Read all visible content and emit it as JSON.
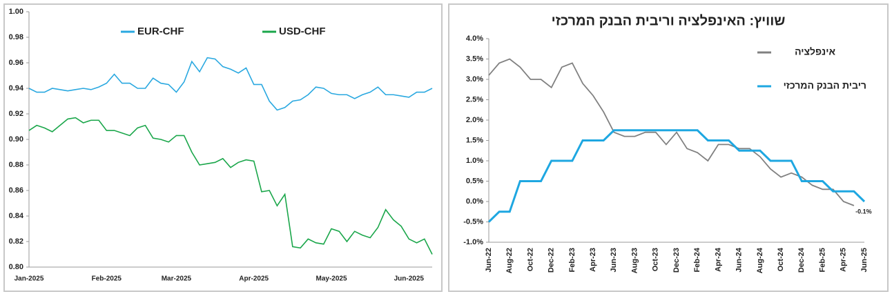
{
  "chart_data": [
    {
      "type": "line",
      "categories": [
        "Jan-2025",
        null,
        null,
        null,
        null,
        null,
        null,
        null,
        null,
        null,
        "Feb-2025",
        null,
        null,
        null,
        null,
        null,
        null,
        null,
        null,
        "Mar-2025",
        null,
        null,
        null,
        null,
        null,
        null,
        null,
        null,
        null,
        "Apr-2025",
        null,
        null,
        null,
        null,
        null,
        null,
        null,
        null,
        null,
        "May-2025",
        null,
        null,
        null,
        null,
        null,
        null,
        null,
        null,
        null,
        "Jun-2025",
        null,
        null,
        null
      ],
      "series": [
        {
          "name": "EUR-CHF",
          "color": "#29a8e0",
          "values": [
            0.94,
            0.937,
            0.937,
            0.94,
            0.939,
            0.938,
            0.939,
            0.94,
            0.939,
            0.941,
            0.944,
            0.951,
            0.944,
            0.944,
            0.94,
            0.94,
            0.948,
            0.944,
            0.943,
            0.937,
            0.945,
            0.961,
            0.953,
            0.964,
            0.963,
            0.957,
            0.955,
            0.952,
            0.956,
            0.943,
            0.943,
            0.93,
            0.923,
            0.925,
            0.93,
            0.931,
            0.935,
            0.941,
            0.94,
            0.936,
            0.935,
            0.935,
            0.932,
            0.935,
            0.937,
            0.941,
            0.935,
            0.935,
            0.934,
            0.933,
            0.937,
            0.937,
            0.94
          ]
        },
        {
          "name": "USD-CHF",
          "color": "#1aa64a",
          "values": [
            0.907,
            0.911,
            0.909,
            0.906,
            0.911,
            0.916,
            0.917,
            0.913,
            0.915,
            0.915,
            0.907,
            0.907,
            0.905,
            0.903,
            0.909,
            0.911,
            0.901,
            0.9,
            0.898,
            0.903,
            0.903,
            0.89,
            0.88,
            0.881,
            0.882,
            0.885,
            0.878,
            0.882,
            0.884,
            0.883,
            0.859,
            0.86,
            0.848,
            0.857,
            0.816,
            0.815,
            0.822,
            0.819,
            0.818,
            0.83,
            0.828,
            0.82,
            0.828,
            0.825,
            0.823,
            0.831,
            0.845,
            0.837,
            0.832,
            0.822,
            0.819,
            0.822,
            0.81
          ]
        }
      ],
      "ylim": [
        0.8,
        1.0
      ],
      "yticks": [
        {
          "value": 0.8,
          "label": "0.80"
        },
        0.82,
        0.84,
        0.86,
        0.88,
        {
          "value": 0.9,
          "label": "0.90"
        },
        0.92,
        0.94,
        0.96,
        0.98,
        {
          "value": 1.0,
          "label": "1.00"
        }
      ],
      "grid": false
    },
    {
      "type": "line",
      "title": "שוויץ: האינפלציה וריבית הבנק המרכזי",
      "categories": [
        "Jun-22",
        null,
        "Aug-22",
        null,
        "Oct-22",
        null,
        "Dec-22",
        null,
        "Feb-23",
        null,
        "Apr-23",
        null,
        "Jun-23",
        null,
        "Aug-23",
        null,
        "Oct-23",
        null,
        "Dec-23",
        null,
        "Feb-24",
        null,
        "Apr-24",
        null,
        "Jun-24",
        null,
        "Aug-24",
        null,
        "Oct-24",
        null,
        "Dec-24",
        null,
        "Feb-25",
        null,
        "Apr-25",
        null,
        "Jun-25"
      ],
      "series": [
        {
          "name": "אינפלציה",
          "color": "#808080",
          "values": [
            3.1,
            3.4,
            3.5,
            3.3,
            3.0,
            3.0,
            2.8,
            3.3,
            3.4,
            2.9,
            2.6,
            2.2,
            1.7,
            1.6,
            1.6,
            1.7,
            1.7,
            1.4,
            1.7,
            1.3,
            1.2,
            1.0,
            1.4,
            1.4,
            1.3,
            1.3,
            1.1,
            0.8,
            0.6,
            0.7,
            0.6,
            0.4,
            0.3,
            0.3,
            0.0,
            -0.1,
            null
          ],
          "value_labels": [
            null,
            null,
            null,
            null,
            null,
            null,
            null,
            null,
            null,
            null,
            null,
            null,
            null,
            null,
            null,
            null,
            null,
            null,
            null,
            null,
            null,
            null,
            null,
            null,
            null,
            null,
            null,
            null,
            null,
            null,
            null,
            null,
            null,
            null,
            null,
            "-0.1%",
            null
          ]
        },
        {
          "name": "ריבית הבנק המרכזי",
          "color": "#1ea7e1",
          "values": [
            -0.5,
            -0.25,
            -0.25,
            0.5,
            0.5,
            0.5,
            1.0,
            1.0,
            1.0,
            1.5,
            1.5,
            1.5,
            1.75,
            1.75,
            1.75,
            1.75,
            1.75,
            1.75,
            1.75,
            1.75,
            1.75,
            1.5,
            1.5,
            1.5,
            1.25,
            1.25,
            1.25,
            1.0,
            1.0,
            1.0,
            0.5,
            0.5,
            0.5,
            0.25,
            0.25,
            0.25,
            0.0
          ]
        }
      ],
      "ylim": [
        -1.0,
        4.0
      ],
      "yticks": [
        {
          "value": -1.0,
          "label": "-1.0%"
        },
        {
          "value": -0.5,
          "label": "-0.5%"
        },
        {
          "value": 0.0,
          "label": "0.0%"
        },
        {
          "value": 0.5,
          "label": "0.5%"
        },
        {
          "value": 1.0,
          "label": "1.0%"
        },
        {
          "value": 1.5,
          "label": "1.5%"
        },
        {
          "value": 2.0,
          "label": "2.0%"
        },
        {
          "value": 2.5,
          "label": "2.5%"
        },
        {
          "value": 3.0,
          "label": "3.0%"
        },
        {
          "value": 3.5,
          "label": "3.5%"
        },
        {
          "value": 4.0,
          "label": "4.0%"
        }
      ],
      "grid": false
    }
  ]
}
